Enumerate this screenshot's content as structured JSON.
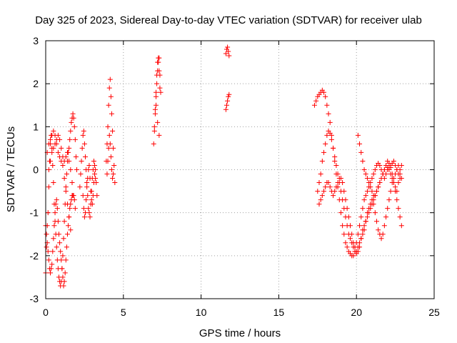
{
  "chart_data": {
    "type": "scatter",
    "title": "Day 325 of 2023, Sidereal Day-to-day VTEC variation (SDTVAR) for receiver ulab",
    "xlabel": "GPS time / hours",
    "ylabel": "SDTVAR / TECUs",
    "xlim": [
      0,
      25
    ],
    "ylim": [
      -3,
      3
    ],
    "xticks": [
      0,
      5,
      10,
      15,
      20,
      25
    ],
    "yticks": [
      -3,
      -2,
      -1,
      0,
      1,
      2,
      3
    ],
    "xtick_labels": [
      "0",
      "5",
      "10",
      "15",
      "20",
      "25"
    ],
    "ytick_labels": [
      "-3",
      "-2",
      "-1",
      "0",
      "1",
      "2",
      "3"
    ],
    "grid": true,
    "marker": "+",
    "color": "#ff0000",
    "series": [
      {
        "name": "SDTVAR",
        "x": [
          0.0,
          0.05,
          0.1,
          0.15,
          0.2,
          0.25,
          0.3,
          0.35,
          0.4,
          0.45,
          0.5,
          0.55,
          0.6,
          0.65,
          0.7,
          0.75,
          0.8,
          0.85,
          0.9,
          0.95,
          1.0,
          1.05,
          1.1,
          1.15,
          1.2,
          1.25,
          1.3,
          1.35,
          1.4,
          1.45,
          1.5,
          1.55,
          1.6,
          1.65,
          1.7,
          1.75,
          1.8,
          1.85,
          1.9,
          1.95,
          2.0,
          0.0,
          0.05,
          0.1,
          0.15,
          0.2,
          0.25,
          0.3,
          0.35,
          0.4,
          0.45,
          0.5,
          0.55,
          0.6,
          0.65,
          0.7,
          0.75,
          0.8,
          0.85,
          0.9,
          0.95,
          1.0,
          1.05,
          1.1,
          1.15,
          1.2,
          1.25,
          1.3,
          1.35,
          1.4,
          1.45,
          1.5,
          1.55,
          1.6,
          1.65,
          1.7,
          1.75,
          1.8,
          1.85,
          1.9,
          0.1,
          0.2,
          0.3,
          0.4,
          0.5,
          0.6,
          0.7,
          0.8,
          0.9,
          1.0,
          1.1,
          1.2,
          1.3,
          1.4,
          1.5,
          1.6,
          0.2,
          0.3,
          0.4,
          0.5,
          0.6,
          0.7,
          0.8,
          0.9,
          1.0,
          1.1,
          1.2,
          1.3,
          1.4,
          1.5,
          1.6,
          1.7,
          2.2,
          2.25,
          2.3,
          2.35,
          2.4,
          2.45,
          2.5,
          2.55,
          2.6,
          2.65,
          2.7,
          2.75,
          2.8,
          2.85,
          2.9,
          2.95,
          3.0,
          3.05,
          3.1,
          3.15,
          3.2,
          2.4,
          2.45,
          2.5,
          2.55,
          2.6,
          2.65,
          2.7,
          2.75,
          2.8,
          2.85,
          2.9,
          2.95,
          3.0,
          3.05,
          3.1,
          3.15,
          3.2,
          3.25,
          3.3,
          3.9,
          3.95,
          4.0,
          4.05,
          4.1,
          4.15,
          4.2,
          4.25,
          4.3,
          4.35,
          4.4,
          4.45,
          3.95,
          4.0,
          4.05,
          4.1,
          4.15,
          4.2,
          4.25,
          4.3,
          4.35,
          6.95,
          7.0,
          7.05,
          7.1,
          7.15,
          7.2,
          7.25,
          7.3,
          7.35,
          7.4,
          7.0,
          7.05,
          7.1,
          7.15,
          7.2,
          7.25,
          7.3,
          7.35,
          7.1,
          7.2,
          7.3,
          11.6,
          11.65,
          11.7,
          11.75,
          11.8,
          11.6,
          11.65,
          11.7,
          11.75,
          11.8,
          17.3,
          17.4,
          17.5,
          17.6,
          17.7,
          17.8,
          17.9,
          18.0,
          18.1,
          18.2,
          18.3,
          18.4,
          18.5,
          18.6,
          18.7,
          18.8,
          18.9,
          19.0,
          19.1,
          19.2,
          19.3,
          19.4,
          19.5,
          19.6,
          19.7,
          19.8,
          19.9,
          20.0,
          20.1,
          20.2,
          20.3,
          20.4,
          20.5,
          20.6,
          20.7,
          20.8,
          20.9,
          21.0,
          21.1,
          21.2,
          21.3,
          21.4,
          21.5,
          21.6,
          21.7,
          21.8,
          21.9,
          22.0,
          22.1,
          22.2,
          22.3,
          22.4,
          22.5,
          22.6,
          22.7,
          22.8,
          17.5,
          17.6,
          17.7,
          17.8,
          17.9,
          18.0,
          18.1,
          18.2,
          18.3,
          18.4,
          18.5,
          18.6,
          18.7,
          18.8,
          18.9,
          19.0,
          19.1,
          19.2,
          19.3,
          19.4,
          19.5,
          19.6,
          19.7,
          19.8,
          19.9,
          20.0,
          20.1,
          20.2,
          20.3,
          20.4,
          20.5,
          20.6,
          20.7,
          20.8,
          20.9,
          21.0,
          21.1,
          21.2,
          21.3,
          21.4,
          21.5,
          21.6,
          21.7,
          21.8,
          21.9,
          22.0,
          22.1,
          22.2,
          22.3,
          22.4,
          22.5,
          22.6,
          22.7,
          22.8,
          22.9,
          17.6,
          17.7,
          17.8,
          17.9,
          18.0,
          18.1,
          18.2,
          18.3,
          18.4,
          18.5,
          18.6,
          18.7,
          18.8,
          18.9,
          19.0,
          19.1,
          19.2,
          19.3,
          19.4,
          19.5,
          19.6,
          19.7,
          19.8,
          19.9,
          20.0,
          20.1,
          20.2,
          20.3,
          20.4,
          20.5,
          20.6,
          20.7,
          20.8,
          20.9,
          21.0,
          21.1,
          21.2,
          21.3,
          21.4,
          21.5,
          21.6,
          21.7,
          21.8,
          21.9,
          22.0,
          22.1,
          22.2,
          22.3,
          22.4,
          22.5,
          22.6,
          22.7,
          22.8,
          22.9,
          20.1,
          20.2,
          20.3,
          20.4,
          20.5,
          20.6,
          20.7,
          20.8,
          20.9,
          21.0,
          21.1,
          21.2,
          21.3,
          21.4,
          21.5,
          21.6,
          21.7,
          21.8,
          21.9,
          22.0,
          22.1,
          22.2,
          22.3,
          22.4,
          22.5,
          22.6,
          22.7,
          22.8,
          22.9
        ],
        "y": [
          -2.4,
          -1.8,
          -1.3,
          -1.0,
          -0.4,
          0.2,
          0.6,
          0.8,
          0.5,
          0.1,
          -0.3,
          -0.8,
          -1.2,
          -1.5,
          -1.8,
          -2.1,
          -2.3,
          -2.5,
          -2.6,
          -2.7,
          -2.6,
          -2.3,
          -2.0,
          -1.6,
          -1.2,
          -0.8,
          -0.4,
          -0.1,
          0.2,
          0.4,
          0.5,
          0.7,
          0.9,
          1.1,
          1.2,
          1.3,
          1.2,
          1.0,
          0.7,
          0.3,
          0.0,
          -1.3,
          -1.5,
          -1.7,
          -1.9,
          -2.1,
          -2.3,
          -2.4,
          -2.3,
          -2.2,
          -1.9,
          -1.6,
          -1.3,
          -1.0,
          -0.8,
          -0.7,
          -0.9,
          -1.2,
          -1.5,
          -1.7,
          -1.9,
          -2.1,
          -2.3,
          -2.5,
          -2.7,
          -2.6,
          -2.4,
          -2.1,
          -1.8,
          -1.5,
          -1.3,
          -1.1,
          -0.9,
          -0.8,
          -0.7,
          -0.6,
          -0.6,
          -0.6,
          -0.7,
          -0.9,
          0.4,
          0.6,
          0.7,
          0.8,
          0.9,
          0.8,
          0.6,
          0.4,
          0.3,
          0.2,
          0.1,
          -0.2,
          -0.5,
          -0.8,
          -1.1,
          -1.4,
          0.0,
          0.2,
          0.4,
          0.5,
          0.6,
          0.7,
          0.8,
          0.7,
          0.5,
          0.3,
          0.2,
          0.3,
          0.4,
          0.2,
          0.0,
          -0.3,
          -0.4,
          -0.1,
          0.2,
          0.5,
          0.8,
          0.9,
          0.6,
          0.3,
          0.0,
          -0.3,
          -0.6,
          -0.9,
          -1.0,
          -1.1,
          -0.8,
          -0.5,
          -0.2,
          0.0,
          0.2,
          0.1,
          -0.2,
          -0.6,
          -0.9,
          -1.1,
          -1.0,
          -0.7,
          -0.4,
          -0.2,
          0.0,
          0.1,
          -0.2,
          -0.5,
          -0.7,
          -0.8,
          -0.6,
          -0.3,
          -0.1,
          0.0,
          -0.3,
          -0.6,
          0.2,
          0.6,
          1.0,
          1.5,
          1.9,
          2.1,
          1.7,
          1.3,
          0.9,
          0.5,
          0.1,
          -0.3,
          -0.1,
          0.2,
          0.5,
          0.8,
          0.6,
          0.3,
          0.0,
          -0.2,
          -0.1,
          0.6,
          0.9,
          1.3,
          1.7,
          2.0,
          2.3,
          2.5,
          2.6,
          2.2,
          1.8,
          1.0,
          1.4,
          1.8,
          2.2,
          2.5,
          2.6,
          2.3,
          1.9,
          1.5,
          1.1,
          0.8,
          2.7,
          2.8,
          2.85,
          2.75,
          2.65,
          1.4,
          1.5,
          1.6,
          1.7,
          1.75,
          1.5,
          1.6,
          1.7,
          1.75,
          1.8,
          1.85,
          1.8,
          1.7,
          1.5,
          1.3,
          1.1,
          0.8,
          0.5,
          0.2,
          -0.1,
          -0.4,
          -0.7,
          -1.0,
          -1.3,
          -1.5,
          -1.7,
          -1.8,
          -1.9,
          -1.95,
          -2.0,
          -2.0,
          -1.9,
          -1.7,
          -1.5,
          -1.3,
          -1.1,
          -0.9,
          -0.7,
          -0.6,
          -0.5,
          -0.4,
          -0.3,
          -0.2,
          -0.1,
          0.0,
          0.1,
          0.15,
          0.1,
          0.0,
          -0.1,
          -0.2,
          -0.1,
          0.0,
          0.05,
          0.1,
          0.15,
          0.2,
          0.1,
          0.0,
          -0.1,
          -0.2,
          -0.5,
          -0.3,
          -0.1,
          0.2,
          0.4,
          0.6,
          0.8,
          0.9,
          0.85,
          0.7,
          0.5,
          0.3,
          0.1,
          -0.1,
          -0.3,
          -0.5,
          -0.7,
          -0.9,
          -1.1,
          -1.3,
          -1.5,
          -1.6,
          -1.7,
          -1.8,
          -1.9,
          -1.95,
          -1.9,
          -1.8,
          -1.6,
          -1.4,
          -1.3,
          -1.2,
          -1.1,
          -1.0,
          -0.9,
          -0.8,
          -0.7,
          -0.6,
          -0.5,
          -0.4,
          -0.3,
          -0.2,
          -0.1,
          0.0,
          0.1,
          0.05,
          0.0,
          -0.1,
          -0.2,
          -0.3,
          -0.4,
          -0.5,
          -0.3,
          -0.1,
          0.1,
          -0.8,
          -0.7,
          -0.6,
          -0.5,
          -0.4,
          -0.3,
          -0.3,
          -0.4,
          -0.5,
          -0.6,
          -0.5,
          -0.4,
          -0.3,
          -0.2,
          -0.2,
          -0.3,
          -0.5,
          -0.7,
          -0.9,
          -1.1,
          -1.3,
          -1.5,
          -1.7,
          -1.8,
          -1.9,
          -1.8,
          -1.7,
          -1.6,
          -1.5,
          -1.4,
          -1.2,
          -1.0,
          -0.9,
          -0.8,
          -0.7,
          -0.8,
          -1.0,
          -1.2,
          -1.4,
          -1.5,
          -1.6,
          -1.5,
          -1.3,
          -1.1,
          -0.9,
          -0.7,
          -0.5,
          -0.3,
          -0.2,
          -0.1,
          0.0,
          0.1,
          0.0,
          -0.2,
          0.8,
          0.6,
          0.4,
          0.2,
          0.0,
          -0.1,
          -0.2,
          -0.3,
          -0.4,
          -0.5,
          -0.6,
          -0.6,
          -0.5,
          -0.4,
          -0.3,
          -0.2,
          -0.1,
          0.0,
          0.1,
          0.2,
          0.15,
          0.05,
          -0.1,
          -0.3,
          -0.5,
          -0.7,
          -0.9,
          -1.1,
          -1.3
        ]
      }
    ]
  }
}
